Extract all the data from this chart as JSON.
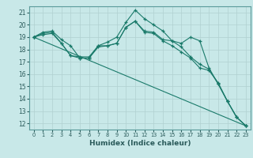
{
  "xlabel": "Humidex (Indice chaleur)",
  "bg_color": "#c8e8e8",
  "grid_color": "#b0d0d0",
  "line_color": "#1a7a6a",
  "xlim": [
    -0.5,
    23.5
  ],
  "ylim": [
    11.5,
    21.5
  ],
  "yticks": [
    12,
    13,
    14,
    15,
    16,
    17,
    18,
    19,
    20,
    21
  ],
  "xticks": [
    0,
    1,
    2,
    3,
    4,
    5,
    6,
    7,
    8,
    9,
    10,
    11,
    12,
    13,
    14,
    15,
    16,
    17,
    18,
    19,
    20,
    21,
    22,
    23
  ],
  "line1_x": [
    0,
    1,
    2,
    3,
    4,
    5,
    6,
    7,
    8,
    9,
    10,
    11,
    12,
    13,
    14,
    15,
    16,
    17,
    18,
    19,
    20,
    21,
    22,
    23
  ],
  "line1_y": [
    19.0,
    19.4,
    19.5,
    18.8,
    18.3,
    17.3,
    17.3,
    18.3,
    18.6,
    19.0,
    20.2,
    21.2,
    20.5,
    20.0,
    19.5,
    18.7,
    18.5,
    19.0,
    18.7,
    16.5,
    15.2,
    13.8,
    12.5,
    11.8
  ],
  "line2_x": [
    0,
    1,
    2,
    3,
    4,
    5,
    6,
    7,
    8,
    9,
    10,
    11,
    12,
    13,
    14,
    15,
    16,
    17,
    18,
    19,
    20,
    21,
    22,
    23
  ],
  "line2_y": [
    19.0,
    19.3,
    19.4,
    18.5,
    17.5,
    17.4,
    17.4,
    18.3,
    18.3,
    18.5,
    19.8,
    20.3,
    19.5,
    19.4,
    18.8,
    18.7,
    18.2,
    17.4,
    16.8,
    16.4,
    15.2,
    13.8,
    12.5,
    11.8
  ],
  "line3_x": [
    0,
    23
  ],
  "line3_y": [
    19.0,
    11.8
  ],
  "line4_x": [
    0,
    1,
    2,
    3,
    4,
    5,
    6,
    7,
    8,
    9,
    10,
    11,
    12,
    13,
    14,
    15,
    16,
    17,
    18,
    19,
    20,
    21,
    22,
    23
  ],
  "line4_y": [
    19.0,
    19.2,
    19.3,
    18.5,
    17.5,
    17.3,
    17.3,
    18.2,
    18.3,
    18.5,
    19.8,
    20.3,
    19.4,
    19.3,
    18.7,
    18.3,
    17.8,
    17.3,
    16.5,
    16.3,
    15.3,
    13.8,
    12.5,
    11.8
  ]
}
